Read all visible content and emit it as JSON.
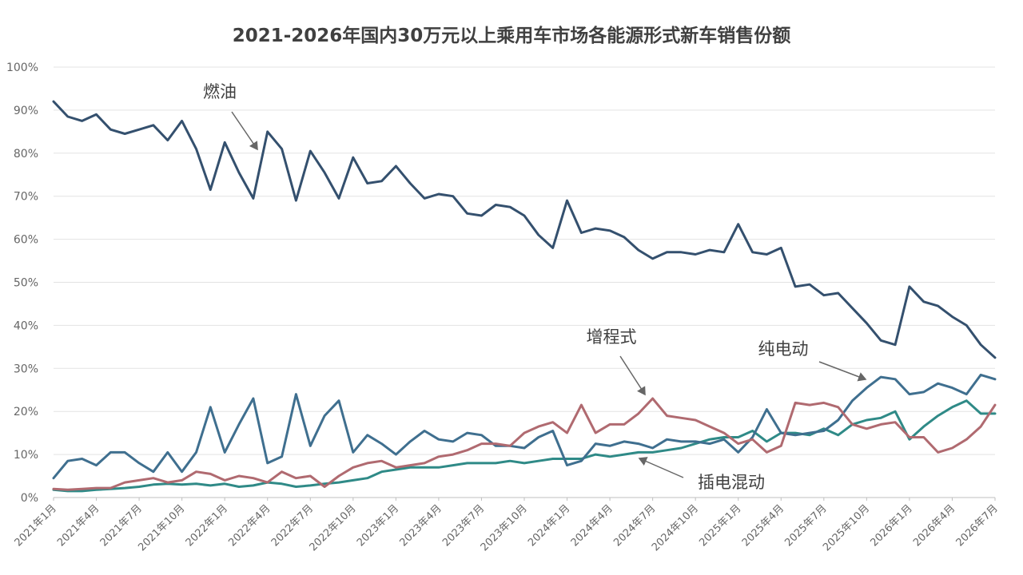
{
  "chart_data": {
    "type": "line",
    "title": "2021-2026年国内30万元以上乘用车市场各能源形式新车销售份额",
    "xlabel": "",
    "ylabel": "",
    "ylim": [
      0,
      100
    ],
    "yticks": [
      "0%",
      "10%",
      "20%",
      "30%",
      "40%",
      "50%",
      "60%",
      "70%",
      "80%",
      "90%",
      "100%"
    ],
    "xtick_labels": [
      "2021年1月",
      "2021年4月",
      "2021年7月",
      "2021年10月",
      "2022年1月",
      "2022年4月",
      "2022年7月",
      "2022年10月",
      "2023年1月",
      "2023年4月",
      "2023年7月",
      "2023年10月",
      "2024年1月",
      "2024年4月",
      "2024年7月",
      "2024年10月",
      "2025年1月",
      "2025年4月",
      "2025年7月",
      "2025年10月",
      "2026年1月",
      "2026年4月",
      "2026年7月"
    ],
    "grid": true,
    "legend": "none",
    "series": [
      {
        "name": "燃油",
        "color": "#34506e",
        "values": [
          92,
          88.5,
          87.5,
          89,
          85.5,
          84.5,
          85.5,
          86.5,
          83,
          87.5,
          81,
          71.5,
          82.5,
          75.5,
          69.5,
          85,
          81,
          69,
          80.5,
          75.5,
          69.5,
          79,
          73,
          73.5,
          77,
          73,
          69.5,
          70.5,
          70,
          66,
          65.5,
          68,
          67.5,
          65.5,
          61,
          58,
          69,
          61.5,
          62.5,
          62,
          60.5,
          57.5,
          55.5,
          57,
          57,
          56.5,
          57.5,
          57,
          63.5,
          57,
          56.5,
          58,
          49,
          49.5,
          47,
          47.5,
          44,
          40.5,
          36.5,
          35.5,
          49,
          45.5,
          44.5,
          42,
          40,
          35.5,
          32.5
        ]
      },
      {
        "name": "纯电动",
        "color": "#3f6f8f",
        "values": [
          4.5,
          8.5,
          9,
          7.5,
          10.5,
          10.5,
          8,
          6,
          10.5,
          6,
          10.5,
          21,
          10.5,
          17,
          23,
          8,
          9.5,
          24,
          12,
          19,
          22.5,
          10.5,
          14.5,
          12.5,
          10,
          13,
          15.5,
          13.5,
          13,
          15,
          14.5,
          12,
          12,
          11.5,
          14,
          15.5,
          7.5,
          8.5,
          12.5,
          12,
          13,
          12.5,
          11.5,
          13.5,
          13,
          13,
          12.5,
          13.5,
          10.5,
          14,
          20.5,
          15,
          14.5,
          15,
          15.5,
          18,
          22.5,
          25.5,
          28,
          27.5,
          24,
          24.5,
          26.5,
          25.5,
          24,
          28.5,
          27.5
        ]
      },
      {
        "name": "增程式",
        "color": "#b06a70",
        "values": [
          2,
          1.8,
          2,
          2.2,
          2.2,
          3.5,
          4,
          4.5,
          3.5,
          4,
          6,
          5.5,
          4,
          5,
          4.5,
          3.5,
          6,
          4.5,
          5,
          2.5,
          5,
          7,
          8,
          8.5,
          7,
          7.5,
          8,
          9.5,
          10,
          11,
          12.5,
          12.5,
          12,
          15,
          16.5,
          17.5,
          15,
          21.5,
          15,
          17,
          17,
          19.5,
          23,
          19,
          18.5,
          18,
          16.5,
          15,
          12.5,
          13.5,
          10.5,
          12,
          22,
          21.5,
          22,
          21,
          17,
          16,
          17,
          17.5,
          14,
          14,
          10.5,
          11.5,
          13.5,
          16.5,
          21.5
        ]
      },
      {
        "name": "插电混动",
        "color": "#2f8a87",
        "values": [
          1.8,
          1.5,
          1.5,
          1.8,
          2,
          2.2,
          2.5,
          3,
          3.2,
          3,
          3.2,
          2.8,
          3.2,
          2.5,
          2.8,
          3.5,
          3.2,
          2.5,
          2.8,
          3.2,
          3.5,
          4,
          4.5,
          6,
          6.5,
          7,
          7,
          7,
          7.5,
          8,
          8,
          8,
          8.5,
          8,
          8.5,
          9,
          9,
          9,
          10,
          9.5,
          10,
          10.5,
          10.5,
          11,
          11.5,
          12.5,
          13.5,
          14,
          14,
          15.5,
          13,
          15,
          15,
          14.5,
          16,
          14.5,
          17,
          18,
          18.5,
          20,
          13.5,
          16.5,
          19,
          21,
          22.5,
          19.5,
          19.5
        ]
      }
    ],
    "annotations": [
      {
        "text": "燃油",
        "series": "燃油"
      },
      {
        "text": "纯电动",
        "series": "纯电动"
      },
      {
        "text": "增程式",
        "series": "增程式"
      },
      {
        "text": "插电混动",
        "series": "插电混动"
      }
    ]
  }
}
